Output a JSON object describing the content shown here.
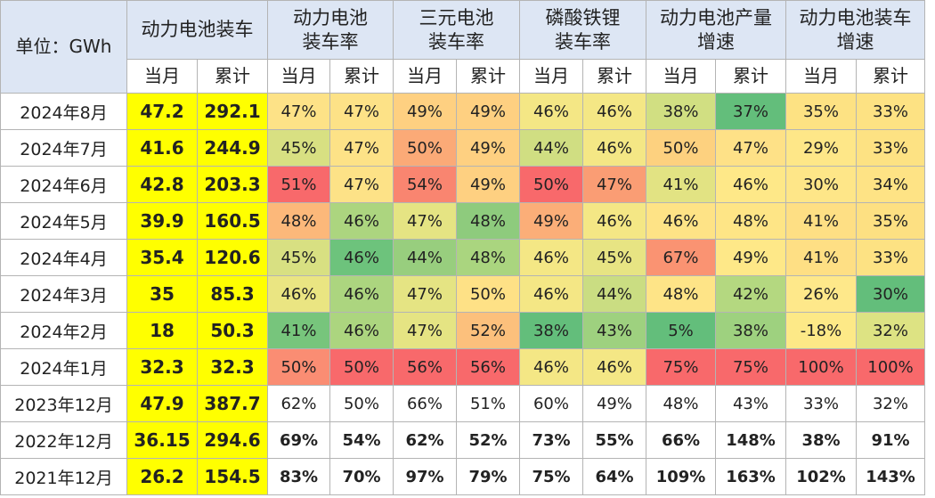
{
  "header": {
    "unit_label": "单位：GWh",
    "groups": [
      {
        "lines": [
          "动力电池装车"
        ]
      },
      {
        "lines": [
          "动力电池",
          "装车率"
        ]
      },
      {
        "lines": [
          "三元电池",
          "装车率"
        ]
      },
      {
        "lines": [
          "磷酸铁锂",
          "装车率"
        ]
      },
      {
        "lines": [
          "动力电池产量",
          "增速"
        ]
      },
      {
        "lines": [
          "动力电池装车",
          "增速"
        ]
      }
    ],
    "sub_labels": [
      "当月",
      "累计",
      "当月",
      "累计",
      "当月",
      "累计",
      "当月",
      "累计",
      "当月",
      "累计",
      "当月",
      "累计"
    ]
  },
  "rows": [
    {
      "label": "2024年8月",
      "bold": false,
      "values": [
        "47.2",
        "292.1",
        "47%",
        "47%",
        "49%",
        "49%",
        "46%",
        "46%",
        "38%",
        "37%",
        "35%",
        "33%"
      ],
      "colors": [
        "#ffff00",
        "#ffff00",
        "#fde287",
        "#fde287",
        "#fed081",
        "#fed081",
        "#f4e785",
        "#f4e785",
        "#d1df82",
        "#63be7b",
        "#fde283",
        "#fde283"
      ]
    },
    {
      "label": "2024年7月",
      "bold": false,
      "values": [
        "41.6",
        "244.9",
        "45%",
        "47%",
        "50%",
        "49%",
        "44%",
        "46%",
        "50%",
        "47%",
        "29%",
        "33%"
      ],
      "colors": [
        "#ffff00",
        "#ffff00",
        "#d8e082",
        "#fde287",
        "#fbaa77",
        "#fed081",
        "#d0de82",
        "#f4e785",
        "#fdd17f",
        "#fee187",
        "#fee788",
        "#fde283"
      ]
    },
    {
      "label": "2024年6月",
      "bold": false,
      "values": [
        "42.8",
        "203.3",
        "51%",
        "47%",
        "54%",
        "49%",
        "50%",
        "47%",
        "41%",
        "46%",
        "30%",
        "34%"
      ],
      "colors": [
        "#ffff00",
        "#ffff00",
        "#f8696b",
        "#fde287",
        "#f98570",
        "#fed081",
        "#f8696b",
        "#fa9d74",
        "#e2e383",
        "#fee888",
        "#fee688",
        "#fee385"
      ]
    },
    {
      "label": "2024年5月",
      "bold": false,
      "values": [
        "39.9",
        "160.5",
        "48%",
        "46%",
        "47%",
        "48%",
        "49%",
        "46%",
        "46%",
        "48%",
        "41%",
        "35%"
      ],
      "colors": [
        "#ffff00",
        "#ffff00",
        "#fcb87a",
        "#acd57f",
        "#e5e483",
        "#8ecb7d",
        "#fbae78",
        "#f4e785",
        "#fee386",
        "#fee586",
        "#fedf84",
        "#fde082"
      ]
    },
    {
      "label": "2024年4月",
      "bold": false,
      "values": [
        "35.4",
        "120.6",
        "45%",
        "46%",
        "44%",
        "48%",
        "46%",
        "45%",
        "67%",
        "49%",
        "41%",
        "33%"
      ],
      "colors": [
        "#ffff00",
        "#ffff00",
        "#d8e082",
        "#6dc37c",
        "#98ce7e",
        "#aad57f",
        "#f4e785",
        "#e7e483",
        "#fa9372",
        "#fee888",
        "#fedf84",
        "#fde283"
      ]
    },
    {
      "label": "2024年3月",
      "bold": false,
      "values": [
        "35",
        "85.3",
        "46%",
        "46%",
        "47%",
        "50%",
        "46%",
        "44%",
        "48%",
        "42%",
        "26%",
        "30%"
      ],
      "colors": [
        "#ffff00",
        "#ffff00",
        "#eae582",
        "#acd57f",
        "#e5e483",
        "#fee186",
        "#f4e785",
        "#cadd82",
        "#fee487",
        "#b4d880",
        "#fee88a",
        "#63be7b"
      ]
    },
    {
      "label": "2024年2月",
      "bold": false,
      "values": [
        "18",
        "50.3",
        "41%",
        "46%",
        "47%",
        "52%",
        "38%",
        "43%",
        "5%",
        "38%",
        "-18%",
        "32%"
      ],
      "colors": [
        "#ffff00",
        "#ffff00",
        "#77c57c",
        "#acd57f",
        "#e5e483",
        "#fcc07c",
        "#63be7b",
        "#9ed17f",
        "#63be7b",
        "#9ed17f",
        "#fde987",
        "#dde383"
      ]
    },
    {
      "label": "2024年1月",
      "bold": false,
      "values": [
        "32.3",
        "32.3",
        "50%",
        "50%",
        "56%",
        "56%",
        "46%",
        "46%",
        "75%",
        "75%",
        "100%",
        "100%"
      ],
      "colors": [
        "#ffff00",
        "#ffff00",
        "#fa8d73",
        "#f8696b",
        "#f8696b",
        "#f8696b",
        "#f4e785",
        "#f4e785",
        "#f8696b",
        "#f8696b",
        "#f8696b",
        "#f8696b"
      ]
    },
    {
      "label": "2023年12月",
      "bold": false,
      "values": [
        "47.9",
        "387.7",
        "62%",
        "50%",
        "66%",
        "51%",
        "60%",
        "49%",
        "48%",
        "43%",
        "33%",
        "32%"
      ],
      "colors": [
        "#ffff00",
        "#ffff00",
        "#ffffff",
        "#ffffff",
        "#ffffff",
        "#ffffff",
        "#ffffff",
        "#ffffff",
        "#ffffff",
        "#ffffff",
        "#ffffff",
        "#ffffff"
      ]
    },
    {
      "label": "2022年12月",
      "bold": true,
      "values": [
        "36.15",
        "294.6",
        "69%",
        "54%",
        "62%",
        "52%",
        "73%",
        "55%",
        "66%",
        "148%",
        "38%",
        "91%"
      ],
      "colors": [
        "#ffff00",
        "#ffff00",
        "#ffffff",
        "#ffffff",
        "#ffffff",
        "#ffffff",
        "#ffffff",
        "#ffffff",
        "#ffffff",
        "#ffffff",
        "#ffffff",
        "#ffffff"
      ]
    },
    {
      "label": "2021年12月",
      "bold": true,
      "values": [
        "26.2",
        "154.5",
        "83%",
        "70%",
        "97%",
        "79%",
        "75%",
        "64%",
        "109%",
        "163%",
        "102%",
        "143%"
      ],
      "colors": [
        "#ffff00",
        "#ffff00",
        "#ffffff",
        "#ffffff",
        "#ffffff",
        "#ffffff",
        "#ffffff",
        "#ffffff",
        "#ffffff",
        "#ffffff",
        "#ffffff",
        "#ffffff"
      ]
    }
  ]
}
